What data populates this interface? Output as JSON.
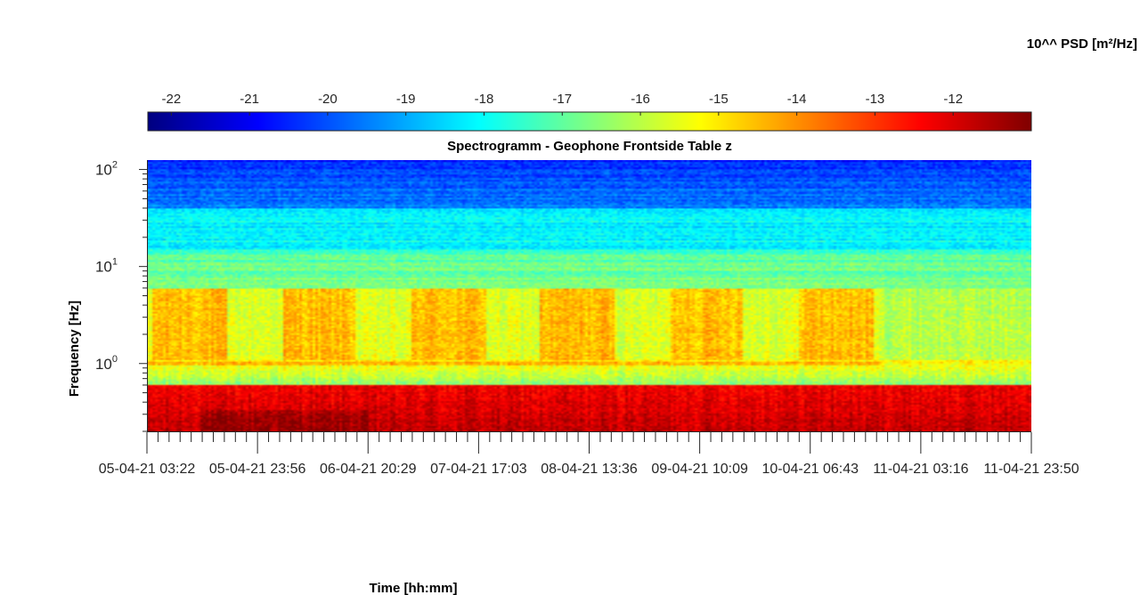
{
  "chart_data": {
    "type": "heatmap",
    "title": "Spectrogramm - Geophone Frontside Table z",
    "xlabel": "Time [hh:mm]",
    "ylabel": "Frequency [Hz]",
    "colorbar_label": "10^^ PSD [m²/Hz]",
    "colormap": "jet",
    "colorbar_range": [
      -22.3,
      -11.0
    ],
    "colorbar_ticks": [
      "-22",
      "-21",
      "-20",
      "-19",
      "-18",
      "-17",
      "-16",
      "-15",
      "-14",
      "-13",
      "-12"
    ],
    "colorbar_tick_values": [
      -22,
      -21,
      -20,
      -19,
      -18,
      -17,
      -16,
      -15,
      -14,
      -13,
      -12
    ],
    "x_tick_labels": [
      "05-04-21  03:22",
      "05-04-21  23:56",
      "06-04-21  20:29",
      "07-04-21  17:03",
      "08-04-21  13:36",
      "09-04-21  10:09",
      "10-04-21  06:43",
      "11-04-21  03:16",
      "11-04-21  23:50"
    ],
    "y_scale": "log",
    "y_range": [
      0.2,
      125
    ],
    "y_tick_labels": [
      {
        "base": "10",
        "exp": "0",
        "value": 1
      },
      {
        "base": "10",
        "exp": "1",
        "value": 10
      },
      {
        "base": "10",
        "exp": "2",
        "value": 100
      }
    ],
    "frequency_bands": [
      {
        "f_min": 40,
        "f_max": 125,
        "log_psd": -19.3
      },
      {
        "f_min": 15,
        "f_max": 40,
        "log_psd": -18.2
      },
      {
        "f_min": 6,
        "f_max": 15,
        "log_psd": -17.2
      },
      {
        "f_min": 1.1,
        "f_max": 6,
        "log_psd_daytime": -14.5,
        "log_psd_night": -15.6
      },
      {
        "f_min": 0.6,
        "f_max": 1.1,
        "log_psd": -15.0
      },
      {
        "f_min": 0.2,
        "f_max": 0.6,
        "log_psd": -12.3
      }
    ],
    "grid": false
  }
}
